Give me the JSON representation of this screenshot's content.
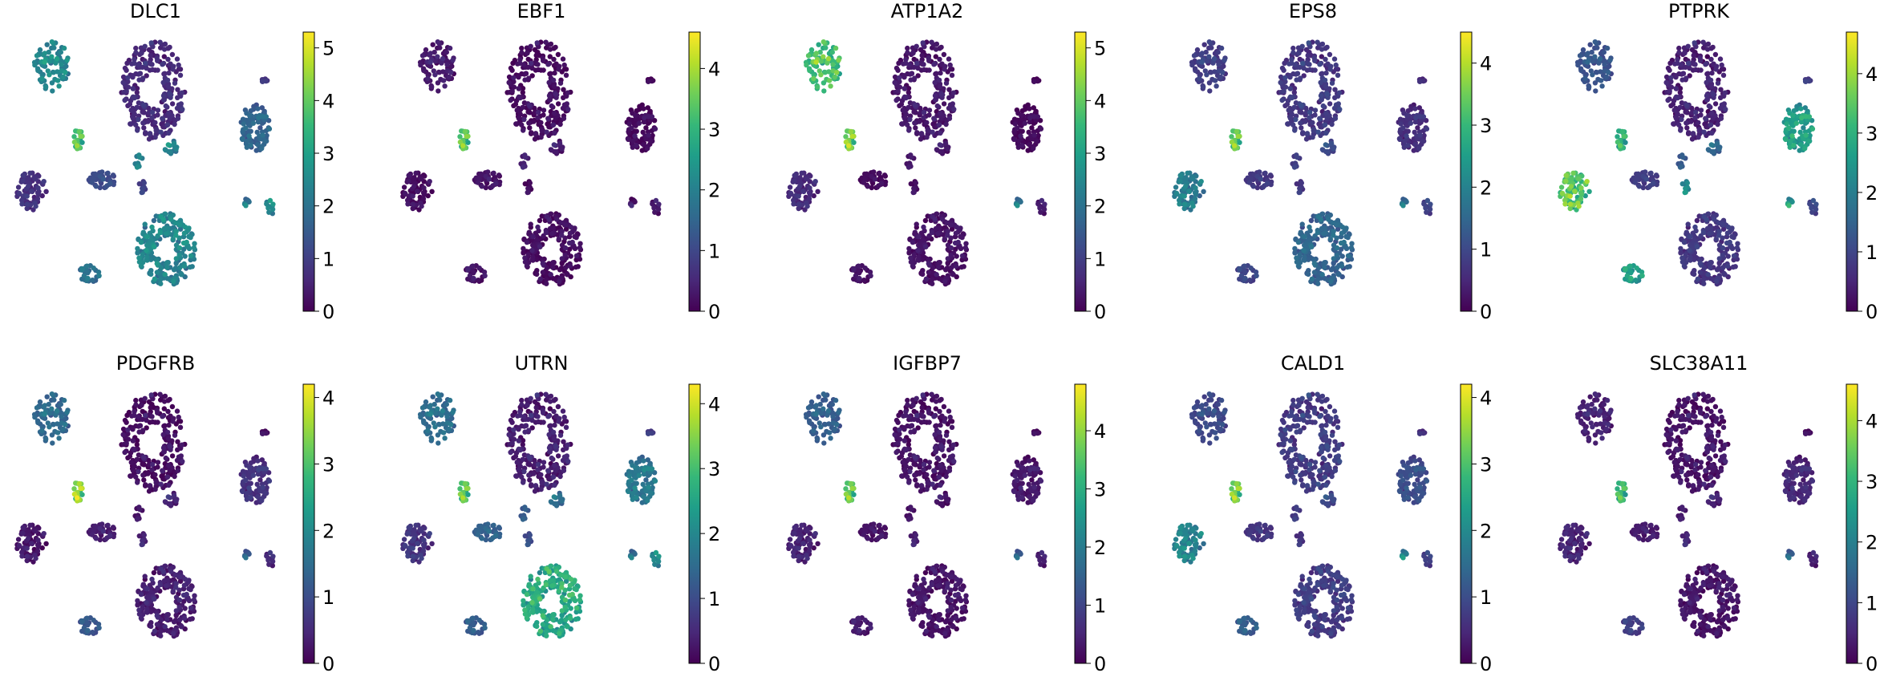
{
  "figure": {
    "background": "#ffffff",
    "colormap": "viridis"
  },
  "chart_data": [
    {
      "type": "scatter",
      "title": "DLC1",
      "colorbar": {
        "vmin": 0,
        "vmax": 5.3,
        "ticks": [
          "0",
          "1",
          "2",
          "3",
          "4",
          "5"
        ]
      },
      "cluster_expression": [
        0.6,
        2.4,
        3.8,
        0.7,
        2.3,
        1.2,
        1.7,
        1.9,
        2.3,
        1.0,
        2.0,
        0.9,
        2.5,
        2.3
      ]
    },
    {
      "type": "scatter",
      "title": "EBF1",
      "colorbar": {
        "vmin": 0,
        "vmax": 4.6,
        "ticks": [
          "0",
          "1",
          "2",
          "3",
          "4"
        ]
      },
      "cluster_expression": [
        0.1,
        0.3,
        3.4,
        0.1,
        0.1,
        0.2,
        0.1,
        0.2,
        0.4,
        0.1,
        0.2,
        0.1,
        0.3,
        0.3
      ]
    },
    {
      "type": "scatter",
      "title": "ATP1A2",
      "colorbar": {
        "vmin": 0,
        "vmax": 5.3,
        "ticks": [
          "0",
          "1",
          "2",
          "3",
          "4",
          "5"
        ]
      },
      "cluster_expression": [
        0.3,
        3.6,
        4.2,
        0.6,
        0.2,
        0.1,
        0.1,
        0.2,
        0.3,
        0.2,
        2.0,
        0.1,
        0.4,
        0.3
      ]
    },
    {
      "type": "scatter",
      "title": "EPS8",
      "colorbar": {
        "vmin": 0,
        "vmax": 4.5,
        "ticks": [
          "0",
          "1",
          "2",
          "3",
          "4"
        ]
      },
      "cluster_expression": [
        0.7,
        0.8,
        3.4,
        1.8,
        1.4,
        0.7,
        0.6,
        0.9,
        0.8,
        0.7,
        1.6,
        0.6,
        0.9,
        1.0
      ]
    },
    {
      "type": "scatter",
      "title": "PTPRK",
      "colorbar": {
        "vmin": 0,
        "vmax": 4.7,
        "ticks": [
          "0",
          "1",
          "2",
          "3",
          "4"
        ]
      },
      "cluster_expression": [
        0.4,
        1.2,
        3.0,
        3.3,
        0.7,
        0.8,
        2.6,
        2.5,
        1.3,
        2.2,
        2.4,
        0.9,
        1.0,
        1.5
      ]
    },
    {
      "type": "scatter",
      "title": "PDGFRB",
      "colorbar": {
        "vmin": 0,
        "vmax": 4.2,
        "ticks": [
          "0",
          "1",
          "2",
          "3",
          "4"
        ]
      },
      "cluster_expression": [
        0.1,
        1.4,
        3.5,
        0.2,
        0.3,
        0.3,
        0.6,
        1.1,
        0.2,
        0.4,
        1.2,
        0.2,
        0.5,
        0.4
      ]
    },
    {
      "type": "scatter",
      "title": "UTRN",
      "colorbar": {
        "vmin": 0,
        "vmax": 4.3,
        "ticks": [
          "0",
          "1",
          "2",
          "3",
          "4"
        ]
      },
      "cluster_expression": [
        0.3,
        1.5,
        3.2,
        0.6,
        2.5,
        1.3,
        1.7,
        1.2,
        1.2,
        1.0,
        1.5,
        0.8,
        2.0,
        1.5
      ]
    },
    {
      "type": "scatter",
      "title": "IGFBP7",
      "colorbar": {
        "vmin": 0,
        "vmax": 4.8,
        "ticks": [
          "0",
          "1",
          "2",
          "3",
          "4"
        ]
      },
      "cluster_expression": [
        0.2,
        1.4,
        3.6,
        0.4,
        0.2,
        0.2,
        0.3,
        0.3,
        0.2,
        0.4,
        1.4,
        0.2,
        0.4,
        0.2
      ]
    },
    {
      "type": "scatter",
      "title": "CALD1",
      "colorbar": {
        "vmin": 0,
        "vmax": 4.2,
        "ticks": [
          "0",
          "1",
          "2",
          "3",
          "4"
        ]
      },
      "cluster_expression": [
        0.7,
        0.9,
        3.3,
        1.8,
        0.7,
        0.6,
        1.0,
        1.2,
        0.7,
        0.6,
        1.8,
        0.6,
        0.8,
        0.9
      ]
    },
    {
      "type": "scatter",
      "title": "SLC38A11",
      "colorbar": {
        "vmin": 0,
        "vmax": 4.6,
        "ticks": [
          "0",
          "1",
          "2",
          "3",
          "4"
        ]
      },
      "cluster_expression": [
        0.2,
        0.4,
        3.1,
        0.4,
        0.2,
        0.3,
        0.5,
        0.8,
        0.3,
        0.5,
        1.4,
        0.2,
        0.4,
        0.4
      ]
    }
  ]
}
